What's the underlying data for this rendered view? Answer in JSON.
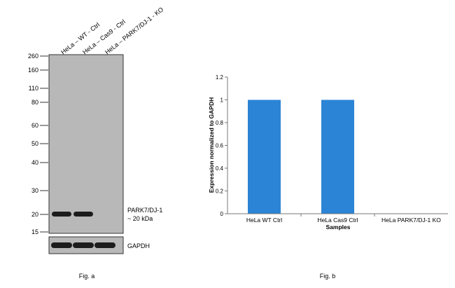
{
  "colors": {
    "bar": "#2b84d6",
    "blot_bg": "#b8b8b8",
    "band": "#1c1c1c",
    "axis": "#777777"
  },
  "chart_data": [
    {
      "type": "blot",
      "panel_caption": "Fig. a",
      "lanes": [
        "HeLa – WT - Ctrl",
        "HeLa – Cas9 - Ctrl",
        "HeLa – PARK7/DJ-1 - KO"
      ],
      "mw_markers": [
        "260",
        "160",
        "110",
        "80",
        "60",
        "50",
        "40",
        "30",
        "20",
        "15"
      ],
      "target_label": [
        "PARK7/DJ-1",
        "~ 20 kDa"
      ],
      "target_band_present": [
        1,
        1,
        0
      ],
      "loading_control_label": "GAPDH",
      "loading_control_present": [
        1,
        1,
        1
      ]
    },
    {
      "type": "bar",
      "panel_caption": "Fig. b",
      "categories": [
        "HeLa WT Ctrl",
        "HeLa Cas9 Ctrl",
        "HeLa PARK7/DJ-1 KO"
      ],
      "values": [
        1,
        1,
        0
      ],
      "xlabel": "Samples",
      "ylabel": "Expression  normalized to GAPDH",
      "ylim": [
        0,
        1.2
      ],
      "yticks": [
        "0",
        "0.2",
        "0.4",
        "0.6",
        "0.8",
        "1",
        "1.2"
      ],
      "grid": false
    }
  ]
}
